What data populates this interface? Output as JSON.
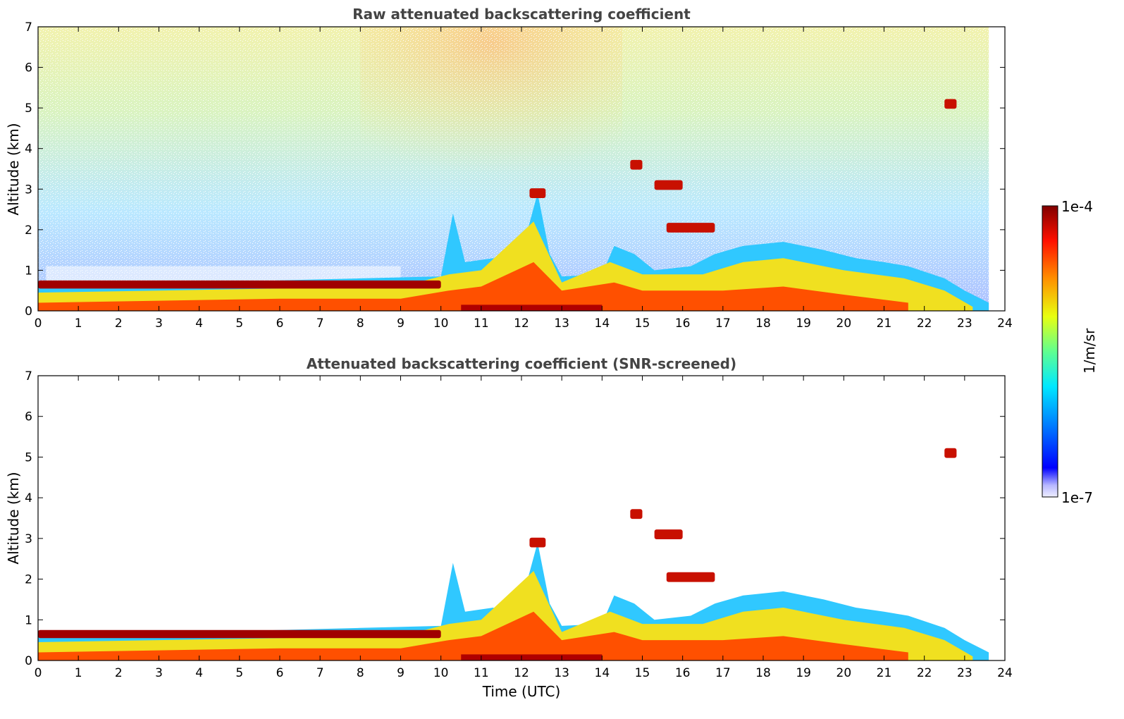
{
  "chart_data": [
    {
      "type": "heatmap",
      "title": "Raw attenuated backscattering coefficient",
      "xlabel": "",
      "ylabel": "Altitude (km)",
      "xlim": [
        0,
        24
      ],
      "ylim": [
        0,
        7
      ],
      "x_ticks": [
        "0",
        "1",
        "2",
        "3",
        "4",
        "5",
        "6",
        "7",
        "8",
        "9",
        "10",
        "11",
        "12",
        "13",
        "14",
        "15",
        "16",
        "17",
        "18",
        "19",
        "20",
        "21",
        "22",
        "23",
        "24"
      ],
      "y_ticks": [
        "0",
        "1",
        "2",
        "3",
        "4",
        "5",
        "6",
        "7"
      ],
      "data_end_time": 23.6,
      "layers": [
        {
          "feature": "boundary layer top",
          "t_start": 0,
          "t_end": 10,
          "altitude_km": 0.65
        },
        {
          "feature": "convective boundary layer",
          "t_start": 10,
          "t_end": 22,
          "altitude_km": 1.2
        },
        {
          "feature": "cloud",
          "t_start": 12.2,
          "t_end": 12.6,
          "altitude_km": 2.9
        },
        {
          "feature": "cloud",
          "t_start": 14.7,
          "t_end": 15.0,
          "altitude_km": 3.6
        },
        {
          "feature": "cloud",
          "t_start": 15.3,
          "t_end": 16.0,
          "altitude_km": 3.1
        },
        {
          "feature": "cloud",
          "t_start": 15.6,
          "t_end": 16.8,
          "altitude_km": 2.05
        },
        {
          "feature": "cloud",
          "t_start": 22.5,
          "t_end": 22.8,
          "altitude_km": 5.1
        }
      ]
    },
    {
      "type": "heatmap",
      "title": "Attenuated backscattering coefficient (SNR-screened)",
      "xlabel": "Time (UTC)",
      "ylabel": "Altitude (km)",
      "xlim": [
        0,
        24
      ],
      "ylim": [
        0,
        7
      ],
      "x_ticks": [
        "0",
        "1",
        "2",
        "3",
        "4",
        "5",
        "6",
        "7",
        "8",
        "9",
        "10",
        "11",
        "12",
        "13",
        "14",
        "15",
        "16",
        "17",
        "18",
        "19",
        "20",
        "21",
        "22",
        "23",
        "24"
      ],
      "y_ticks": [
        "0",
        "1",
        "2",
        "3",
        "4",
        "5",
        "6",
        "7"
      ],
      "data_end_time": 23.6
    }
  ],
  "colorbar": {
    "max_label": "1e-4",
    "min_label": "1e-7",
    "unit_label": "1/m/sr",
    "scale": "log",
    "range": [
      1e-07,
      0.0001
    ]
  }
}
